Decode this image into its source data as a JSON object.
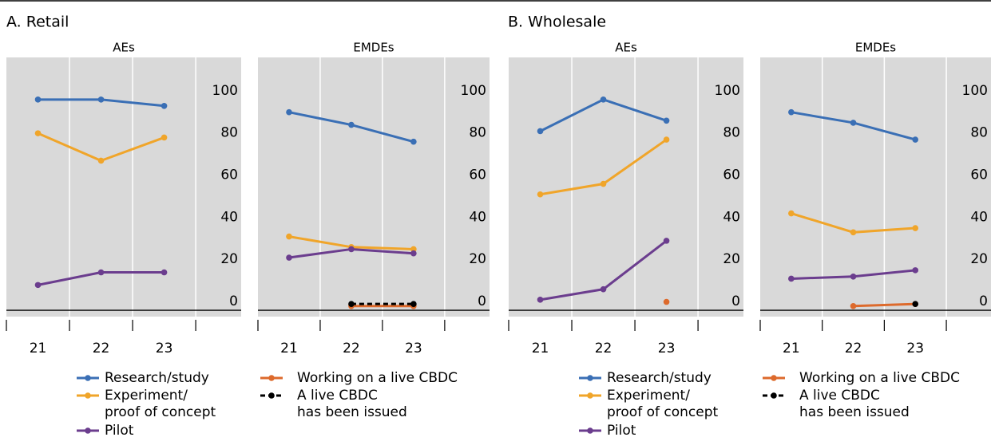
{
  "sections": [
    {
      "title": "A. Retail"
    },
    {
      "title": "B. Wholesale"
    }
  ],
  "chart_data": [
    {
      "type": "line",
      "title": "AEs",
      "x": [
        21,
        22,
        23
      ],
      "xlim": [
        20.5,
        24.22
      ],
      "xticks": [
        21,
        22,
        23
      ],
      "ylim": [
        -3,
        120
      ],
      "yticks": [
        0,
        20,
        40,
        60,
        80,
        100
      ],
      "grid": true,
      "series": [
        {
          "name": "Research/study",
          "color": "#3a6fb5",
          "values": [
            100,
            100,
            97
          ]
        },
        {
          "name": "Experiment/\nproof of concept",
          "color": "#f0a52a",
          "values": [
            84,
            71,
            82
          ]
        },
        {
          "name": "Pilot",
          "color": "#6b3d8e",
          "values": [
            12,
            18,
            18
          ]
        }
      ]
    },
    {
      "type": "line",
      "title": "EMDEs",
      "x": [
        21,
        22,
        23
      ],
      "xlim": [
        20.5,
        24.22
      ],
      "xticks": [
        21,
        22,
        23
      ],
      "ylim": [
        -3,
        120
      ],
      "yticks": [
        0,
        20,
        40,
        60,
        80,
        100
      ],
      "grid": true,
      "series": [
        {
          "name": "Research/study",
          "color": "#3a6fb5",
          "values": [
            94,
            88,
            80
          ]
        },
        {
          "name": "Experiment/\nproof of concept",
          "color": "#f0a52a",
          "values": [
            35,
            30,
            29
          ]
        },
        {
          "name": "Pilot",
          "color": "#6b3d8e",
          "values": [
            25,
            29,
            27
          ]
        },
        {
          "name": "Working on a live CBDC",
          "color": "#dd6a2c",
          "values": [
            null,
            2,
            2
          ]
        },
        {
          "name": "A live CBDC\nhas been issued",
          "color": "#000000",
          "line_style": "dashed",
          "values": [
            null,
            3,
            3
          ]
        }
      ]
    },
    {
      "type": "line",
      "title": "AEs",
      "x": [
        21,
        22,
        23
      ],
      "xlim": [
        20.5,
        24.22
      ],
      "xticks": [
        21,
        22,
        23
      ],
      "ylim": [
        -3,
        120
      ],
      "yticks": [
        0,
        20,
        40,
        60,
        80,
        100
      ],
      "grid": true,
      "series": [
        {
          "name": "Research/study",
          "color": "#3a6fb5",
          "values": [
            85,
            100,
            90
          ]
        },
        {
          "name": "Experiment/\nproof of concept",
          "color": "#f0a52a",
          "values": [
            55,
            60,
            81
          ]
        },
        {
          "name": "Pilot",
          "color": "#6b3d8e",
          "values": [
            5,
            10,
            33
          ]
        },
        {
          "name": "Working on a live CBDC",
          "color": "#dd6a2c",
          "values": [
            null,
            null,
            4
          ]
        }
      ]
    },
    {
      "type": "line",
      "title": "EMDEs",
      "x": [
        21,
        22,
        23
      ],
      "xlim": [
        20.5,
        24.22
      ],
      "xticks": [
        21,
        22,
        23
      ],
      "ylim": [
        -3,
        120
      ],
      "yticks": [
        0,
        20,
        40,
        60,
        80,
        100
      ],
      "grid": true,
      "series": [
        {
          "name": "Research/study",
          "color": "#3a6fb5",
          "values": [
            94,
            89,
            81
          ]
        },
        {
          "name": "Experiment/\nproof of concept",
          "color": "#f0a52a",
          "values": [
            46,
            37,
            39
          ]
        },
        {
          "name": "Pilot",
          "color": "#6b3d8e",
          "values": [
            15,
            16,
            19
          ]
        },
        {
          "name": "Working on a live CBDC",
          "color": "#dd6a2c",
          "values": [
            null,
            2,
            3
          ]
        },
        {
          "name": "A live CBDC\nhas been issued",
          "color": "#000000",
          "line_style": "dashed",
          "values": [
            null,
            null,
            3
          ]
        }
      ]
    }
  ]
}
